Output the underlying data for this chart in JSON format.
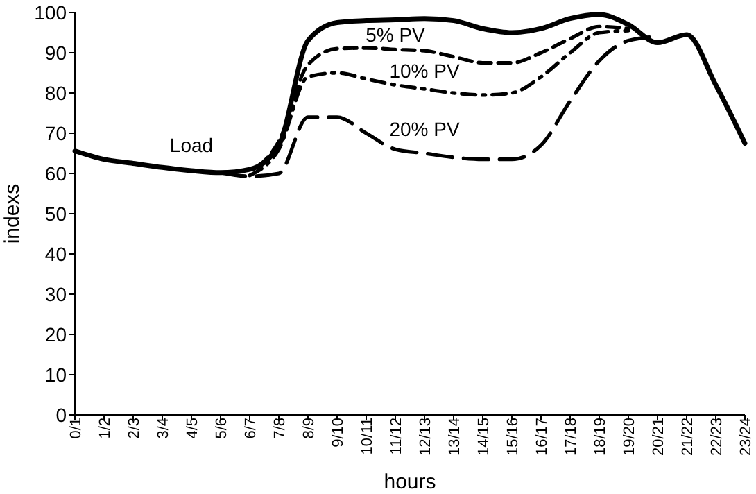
{
  "chart_data": {
    "type": "line",
    "xlabel": "hours",
    "ylabel": "indexs",
    "categories": [
      "0/1",
      "1/2",
      "2/3",
      "3/4",
      "4/5",
      "5/6",
      "6/7",
      "7/8",
      "8/9",
      "9/10",
      "10/11",
      "11/12",
      "12/13",
      "13/14",
      "14/15",
      "15/16",
      "16/17",
      "17/18",
      "18/19",
      "19/20",
      "20/21",
      "21/22",
      "22/23",
      "23/24"
    ],
    "series": [
      {
        "color": "#000000",
        "line_style": "solid",
        "values": [
          65.6,
          63.5,
          62.5,
          61.5,
          60.7,
          60.2,
          61,
          67,
          93,
          97.5,
          98,
          98.2,
          98.5,
          98,
          96,
          95,
          96,
          98.5,
          99.5,
          97,
          92.5,
          94.5,
          82,
          67.5
        ]
      },
      {
        "color": "#000000",
        "line_style": "dashed",
        "values": [
          null,
          null,
          null,
          null,
          null,
          60.2,
          61,
          68,
          87,
          91,
          91.2,
          90.8,
          90.5,
          89,
          87.5,
          87.5,
          90,
          93.5,
          96.5,
          96,
          null,
          null,
          null,
          null
        ]
      },
      {
        "color": "#000000",
        "line_style": "dashdot",
        "values": [
          null,
          null,
          null,
          null,
          null,
          null,
          59.5,
          66,
          84,
          85,
          83.5,
          82,
          81,
          80,
          79.5,
          80,
          84,
          90,
          95,
          95.5,
          null,
          null,
          null,
          null
        ]
      },
      {
        "color": "#000000",
        "line_style": "longdash",
        "values": [
          null,
          null,
          null,
          null,
          null,
          60.2,
          59.3,
          60,
          74,
          74,
          70,
          66,
          65,
          64,
          63.5,
          63.5,
          67,
          78,
          88,
          93,
          94,
          null,
          null,
          null
        ]
      }
    ],
    "annotations": [
      "Load",
      "5% PV",
      "10% PV",
      "20% PV"
    ],
    "ylim": [
      0,
      100
    ],
    "yticks": [
      0,
      10,
      20,
      30,
      40,
      50,
      60,
      70,
      80,
      90,
      100
    ],
    "grid": false,
    "legend": false,
    "marker": "none"
  }
}
